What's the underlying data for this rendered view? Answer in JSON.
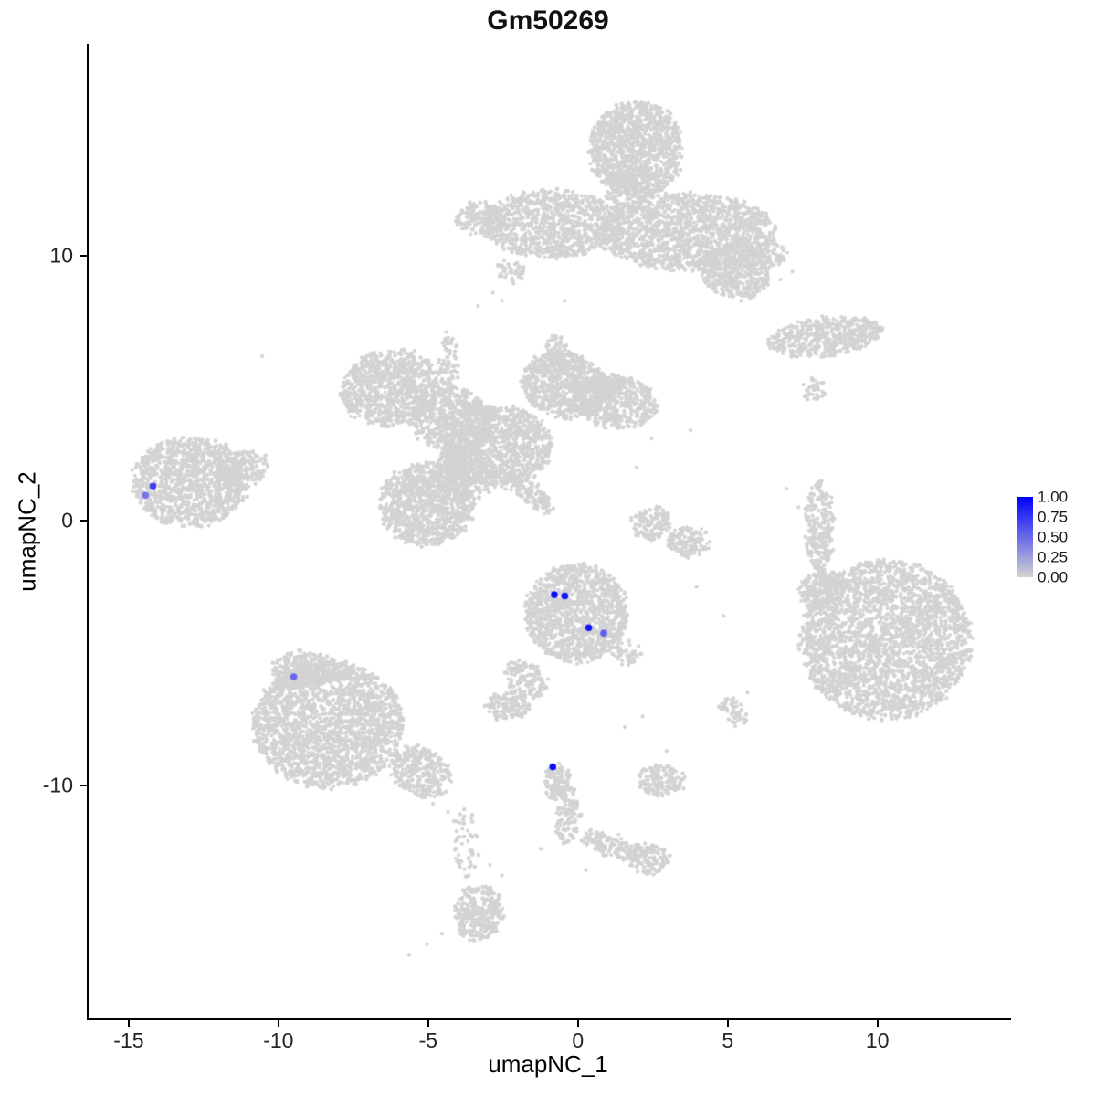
{
  "chart_data": {
    "type": "scatter",
    "title": "Gm50269",
    "xlabel": "umapNC_1",
    "ylabel": "umapNC_2",
    "xlim": [
      -16.4,
      14.4
    ],
    "ylim": [
      -18.8,
      18.0
    ],
    "x_ticks": [
      -15,
      -10,
      -5,
      0,
      5,
      10
    ],
    "y_ticks": [
      -10,
      0,
      10
    ],
    "grid": false,
    "legend_position": "right",
    "point_color_low": "#D3D3D3",
    "point_color_high": "#0000FF",
    "legend": {
      "ticks": [
        "1.00",
        "0.75",
        "0.50",
        "0.25",
        "0.00"
      ],
      "gradient_top": "#0000FF",
      "gradient_bottom": "#D3D3D3"
    },
    "clusters": [
      {
        "x": 1.9,
        "y": 14.0,
        "rx": 1.55,
        "ry": 1.8,
        "rot": 0,
        "n": 1150
      },
      {
        "x": 1.6,
        "y": 12.5,
        "rx": 0.8,
        "ry": 0.8,
        "rot": 0,
        "n": 130
      },
      {
        "x": -0.9,
        "y": 11.2,
        "rx": 2.4,
        "ry": 1.25,
        "rot": 0,
        "n": 1000
      },
      {
        "x": 3.6,
        "y": 10.9,
        "rx": 2.9,
        "ry": 1.45,
        "rot": 0,
        "n": 1400
      },
      {
        "x": 5.2,
        "y": 9.4,
        "rx": 1.2,
        "ry": 1.0,
        "rot": -20,
        "n": 420
      },
      {
        "x": 6.2,
        "y": 10.1,
        "rx": 0.7,
        "ry": 0.55,
        "rot": 0,
        "n": 110
      },
      {
        "x": -3.3,
        "y": 11.4,
        "rx": 0.8,
        "ry": 0.6,
        "rot": 0,
        "n": 140
      },
      {
        "x": -2.3,
        "y": 9.4,
        "rx": 0.45,
        "ry": 0.4,
        "rot": 0,
        "n": 45
      },
      {
        "x": -6.3,
        "y": 5.0,
        "rx": 1.7,
        "ry": 1.4,
        "rot": 15,
        "n": 900
      },
      {
        "x": -4.3,
        "y": 3.8,
        "rx": 1.4,
        "ry": 1.2,
        "rot": -30,
        "n": 620
      },
      {
        "x": -2.8,
        "y": 2.8,
        "rx": 1.85,
        "ry": 1.55,
        "rot": 0,
        "n": 1100
      },
      {
        "x": -0.5,
        "y": 5.1,
        "rx": 1.45,
        "ry": 1.2,
        "rot": -15,
        "n": 680
      },
      {
        "x": 1.2,
        "y": 4.5,
        "rx": 1.4,
        "ry": 1.0,
        "rot": -15,
        "n": 520
      },
      {
        "x": -5.1,
        "y": 0.6,
        "rx": 1.55,
        "ry": 1.55,
        "rot": 0,
        "n": 950
      },
      {
        "x": -3.9,
        "y": 1.6,
        "rx": 0.95,
        "ry": 0.9,
        "rot": 0,
        "n": 300
      },
      {
        "x": -1.6,
        "y": 1.0,
        "rx": 0.95,
        "ry": 0.35,
        "rot": -45,
        "n": 120
      },
      {
        "x": -0.8,
        "y": 6.2,
        "rx": 0.4,
        "ry": 0.75,
        "rot": 0,
        "n": 90
      },
      {
        "x": -4.35,
        "y": 6.0,
        "rx": 0.3,
        "ry": 1.1,
        "rot": 0,
        "n": 70
      },
      {
        "x": -13.0,
        "y": 1.45,
        "rx": 1.95,
        "ry": 1.65,
        "rot": 0,
        "n": 1150
      },
      {
        "x": -11.3,
        "y": 1.9,
        "rx": 0.9,
        "ry": 0.7,
        "rot": 20,
        "n": 200
      },
      {
        "x": 8.2,
        "y": 6.95,
        "rx": 1.9,
        "ry": 0.7,
        "rot": 8,
        "n": 500
      },
      {
        "x": 7.8,
        "y": 4.9,
        "rx": 0.4,
        "ry": 0.45,
        "rot": 0,
        "n": 40
      },
      {
        "x": 8.0,
        "y": -0.2,
        "rx": 0.45,
        "ry": 1.75,
        "rot": 0,
        "n": 240
      },
      {
        "x": 10.2,
        "y": -4.5,
        "rx": 2.85,
        "ry": 3.0,
        "rot": 0,
        "n": 2700
      },
      {
        "x": 8.1,
        "y": -2.6,
        "rx": 0.8,
        "ry": 0.7,
        "rot": 30,
        "n": 190
      },
      {
        "x": -0.1,
        "y": -3.5,
        "rx": 1.7,
        "ry": 1.85,
        "rot": 0,
        "n": 1200
      },
      {
        "x": -1.8,
        "y": -6.0,
        "rx": 0.6,
        "ry": 0.8,
        "rot": 45,
        "n": 140
      },
      {
        "x": -2.45,
        "y": -7.0,
        "rx": 0.7,
        "ry": 0.55,
        "rot": 0,
        "n": 130
      },
      {
        "x": 1.6,
        "y": -5.0,
        "rx": 0.5,
        "ry": 0.5,
        "rot": 0,
        "n": 45
      },
      {
        "x": 2.4,
        "y": -0.1,
        "rx": 0.65,
        "ry": 0.6,
        "rot": 0,
        "n": 130
      },
      {
        "x": 3.6,
        "y": -0.8,
        "rx": 0.7,
        "ry": 0.55,
        "rot": 0,
        "n": 130
      },
      {
        "x": -8.4,
        "y": -7.7,
        "rx": 2.5,
        "ry": 2.4,
        "rot": 0,
        "n": 2100
      },
      {
        "x": -9.2,
        "y": -5.6,
        "rx": 1.1,
        "ry": 0.65,
        "rot": 0,
        "n": 250
      },
      {
        "x": -5.3,
        "y": -9.5,
        "rx": 1.1,
        "ry": 0.85,
        "rot": -40,
        "n": 320
      },
      {
        "x": -3.8,
        "y": -12.2,
        "rx": 0.4,
        "ry": 1.4,
        "rot": 0,
        "n": 55
      },
      {
        "x": -3.4,
        "y": -14.8,
        "rx": 0.8,
        "ry": 1.05,
        "rot": 0,
        "n": 300
      },
      {
        "x": -0.75,
        "y": -9.85,
        "rx": 0.45,
        "ry": 0.7,
        "rot": 0,
        "n": 110
      },
      {
        "x": -0.35,
        "y": -11.2,
        "rx": 0.4,
        "ry": 1.05,
        "rot": -10,
        "n": 115
      },
      {
        "x": 1.1,
        "y": -12.3,
        "rx": 1.1,
        "ry": 0.4,
        "rot": -25,
        "n": 140
      },
      {
        "x": 2.3,
        "y": -12.8,
        "rx": 0.65,
        "ry": 0.55,
        "rot": 0,
        "n": 120
      },
      {
        "x": 2.7,
        "y": -9.8,
        "rx": 0.8,
        "ry": 0.6,
        "rot": 0,
        "n": 160
      },
      {
        "x": 5.0,
        "y": -7.0,
        "rx": 0.35,
        "ry": 0.3,
        "rot": 0,
        "n": 28
      },
      {
        "x": 5.3,
        "y": -7.5,
        "rx": 0.3,
        "ry": 0.3,
        "rot": 0,
        "n": 22
      }
    ],
    "sparse_points": [
      [
        -3.4,
        8.1
      ],
      [
        -2.9,
        8.6
      ],
      [
        -2.6,
        8.3
      ],
      [
        7.1,
        9.4
      ],
      [
        6.7,
        9.1
      ],
      [
        3.7,
        3.4
      ],
      [
        2.4,
        3.1
      ],
      [
        1.9,
        2.0
      ],
      [
        8.8,
        -2.7
      ],
      [
        8.6,
        -2.1
      ],
      [
        4.8,
        -3.6
      ],
      [
        3.9,
        -2.5
      ],
      [
        -10.6,
        6.2
      ],
      [
        -5.7,
        -16.4
      ],
      [
        -5.1,
        -16.0
      ],
      [
        -4.6,
        -15.6
      ],
      [
        -3.0,
        -13.0
      ],
      [
        -2.6,
        -13.4
      ],
      [
        2.9,
        -8.7
      ],
      [
        5.6,
        -6.5
      ],
      [
        -1.3,
        -12.4
      ],
      [
        0.2,
        -13.2
      ],
      [
        -4.4,
        -11.0
      ],
      [
        -4.9,
        -10.7
      ],
      [
        6.9,
        1.2
      ],
      [
        7.3,
        0.5
      ],
      [
        2.1,
        -7.4
      ],
      [
        1.5,
        -7.8
      ],
      [
        -0.5,
        8.3
      ]
    ],
    "highlighted_points": [
      {
        "x": -14.25,
        "y": 1.3,
        "value": 0.7
      },
      {
        "x": -14.5,
        "y": 0.95,
        "value": 0.45
      },
      {
        "x": -9.55,
        "y": -5.9,
        "value": 0.5
      },
      {
        "x": -0.85,
        "y": -2.8,
        "value": 0.95
      },
      {
        "x": -0.5,
        "y": -2.85,
        "value": 0.9
      },
      {
        "x": 0.3,
        "y": -4.05,
        "value": 0.9
      },
      {
        "x": 0.8,
        "y": -4.25,
        "value": 0.55
      },
      {
        "x": -0.9,
        "y": -9.3,
        "value": 0.95
      }
    ]
  }
}
